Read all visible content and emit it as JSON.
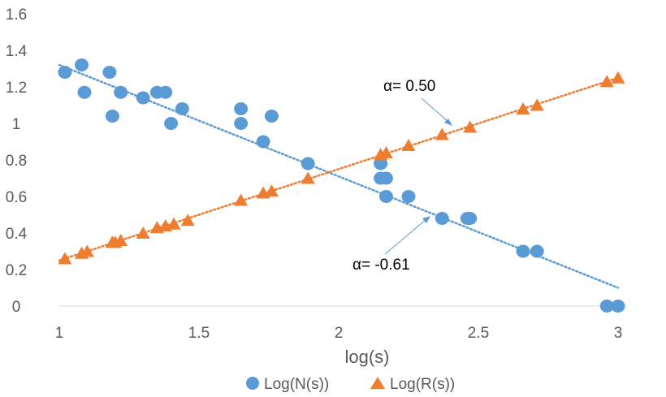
{
  "chart_data": {
    "type": "scatter",
    "title": "",
    "xlabel": "log(s)",
    "ylabel": "",
    "xlim": [
      1,
      3
    ],
    "ylim": [
      0,
      1.6
    ],
    "x_ticks": [
      "1",
      "1.5",
      "2",
      "2.5",
      "3"
    ],
    "y_ticks": [
      "0",
      "0.2",
      "0.4",
      "0.6",
      "0.8",
      "1",
      "1.2",
      "1.4",
      "1.6"
    ],
    "grid": false,
    "legend_position": "bottom",
    "series": [
      {
        "name": "Log(N(s))",
        "marker": "circle",
        "color": "#5B9BD5",
        "points": [
          [
            1.02,
            1.28
          ],
          [
            1.08,
            1.32
          ],
          [
            1.09,
            1.17
          ],
          [
            1.18,
            1.28
          ],
          [
            1.19,
            1.04
          ],
          [
            1.22,
            1.17
          ],
          [
            1.3,
            1.14
          ],
          [
            1.35,
            1.17
          ],
          [
            1.38,
            1.17
          ],
          [
            1.4,
            1.0
          ],
          [
            1.44,
            1.08
          ],
          [
            1.65,
            1.08
          ],
          [
            1.65,
            1.0
          ],
          [
            1.73,
            0.9
          ],
          [
            1.76,
            1.04
          ],
          [
            1.89,
            0.78
          ],
          [
            2.15,
            0.78
          ],
          [
            2.15,
            0.7
          ],
          [
            2.17,
            0.7
          ],
          [
            2.17,
            0.6
          ],
          [
            2.25,
            0.6
          ],
          [
            2.37,
            0.48
          ],
          [
            2.46,
            0.48
          ],
          [
            2.47,
            0.48
          ],
          [
            2.66,
            0.3
          ],
          [
            2.71,
            0.3
          ],
          [
            2.96,
            0.0
          ],
          [
            3.0,
            0.0
          ]
        ],
        "trendline": {
          "x": [
            1.0,
            3.0
          ],
          "y": [
            1.32,
            0.1
          ],
          "slope_label": "α= -0.61"
        }
      },
      {
        "name": "Log(R(s))",
        "marker": "triangle",
        "color": "#ED7D31",
        "points": [
          [
            1.02,
            0.26
          ],
          [
            1.08,
            0.29
          ],
          [
            1.1,
            0.3
          ],
          [
            1.19,
            0.35
          ],
          [
            1.2,
            0.35
          ],
          [
            1.22,
            0.36
          ],
          [
            1.3,
            0.4
          ],
          [
            1.35,
            0.43
          ],
          [
            1.38,
            0.44
          ],
          [
            1.41,
            0.45
          ],
          [
            1.46,
            0.47
          ],
          [
            1.65,
            0.58
          ],
          [
            1.73,
            0.62
          ],
          [
            1.76,
            0.63
          ],
          [
            1.89,
            0.7
          ],
          [
            2.15,
            0.83
          ],
          [
            2.17,
            0.84
          ],
          [
            2.25,
            0.88
          ],
          [
            2.37,
            0.94
          ],
          [
            2.47,
            0.98
          ],
          [
            2.66,
            1.08
          ],
          [
            2.71,
            1.1
          ],
          [
            2.96,
            1.23
          ],
          [
            3.0,
            1.25
          ]
        ],
        "trendline": {
          "x": [
            1.0,
            3.0
          ],
          "y": [
            0.25,
            1.25
          ],
          "slope_label": "α= 0.50"
        }
      }
    ]
  },
  "colors": {
    "axis_text": "#595959",
    "axis_line": "#d9d9d9",
    "annotation_arrow": "#5B9BD5"
  }
}
